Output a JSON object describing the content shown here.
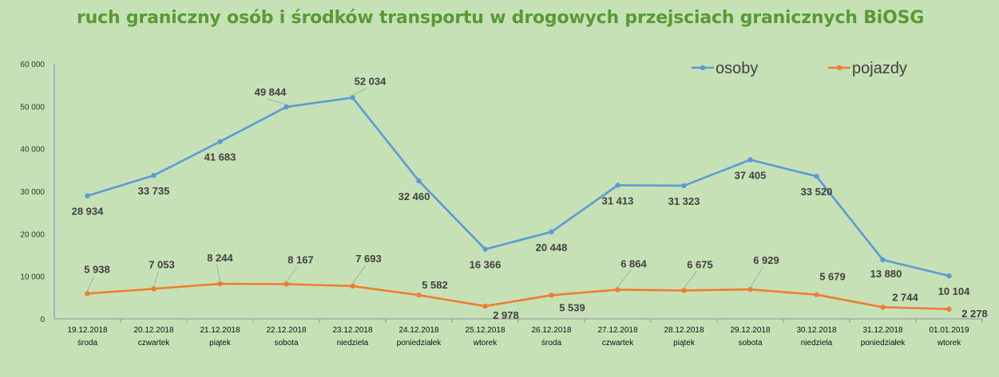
{
  "chart_data": {
    "type": "line",
    "title": "ruch graniczny osób i środków transportu w drogowych przejsciach granicznych BiOSG",
    "categories": [
      [
        "19.12.2018",
        "środa"
      ],
      [
        "20.12.2018",
        "czwartek"
      ],
      [
        "21.12.2018",
        "piątek"
      ],
      [
        "22.12.2018",
        "sobota"
      ],
      [
        "23.12.2018",
        "niedziela"
      ],
      [
        "24.12.2018",
        "poniedziałek"
      ],
      [
        "25.12.2018",
        "wtorek"
      ],
      [
        "26.12.2018",
        "środa"
      ],
      [
        "27.12.2018",
        "czwartek"
      ],
      [
        "28.12.2018",
        "piątek"
      ],
      [
        "29.12.2018",
        "sobota"
      ],
      [
        "30.12.2018",
        "niedziela"
      ],
      [
        "31.12.2018",
        "poniedziałek"
      ],
      [
        "01.01.2019",
        "wtorek"
      ]
    ],
    "ylim": [
      0,
      60000
    ],
    "yticks": [
      0,
      10000,
      20000,
      30000,
      40000,
      50000,
      60000
    ],
    "ytick_labels": [
      "0",
      "10 000",
      "20 000",
      "30 000",
      "40 000",
      "50 000",
      "60 000"
    ],
    "grid": false,
    "legend_position": "top-right",
    "series": [
      {
        "name": "osoby",
        "color": "#5b9bd5",
        "values": [
          28934,
          33735,
          41683,
          49844,
          52034,
          32460,
          16366,
          20448,
          31413,
          31323,
          37405,
          33520,
          13880,
          10104
        ],
        "labels": [
          "28 934",
          "33 735",
          "41 683",
          "49 844",
          "52 034",
          "32 460",
          "16 366",
          "20 448",
          "31 413",
          "31 323",
          "37 405",
          "33 520",
          "13 880",
          "10 104"
        ]
      },
      {
        "name": "pojazdy",
        "color": "#ed7d31",
        "values": [
          5938,
          7053,
          8244,
          8167,
          7693,
          5582,
          2978,
          5539,
          6864,
          6675,
          6929,
          5679,
          2744,
          2278
        ],
        "labels": [
          "5 938",
          "7 053",
          "8 244",
          "8 167",
          "7 693",
          "5 582",
          "2 978",
          "5 539",
          "6 864",
          "6 675",
          "6 929",
          "5 679",
          "2 744",
          "2 278"
        ]
      }
    ]
  }
}
